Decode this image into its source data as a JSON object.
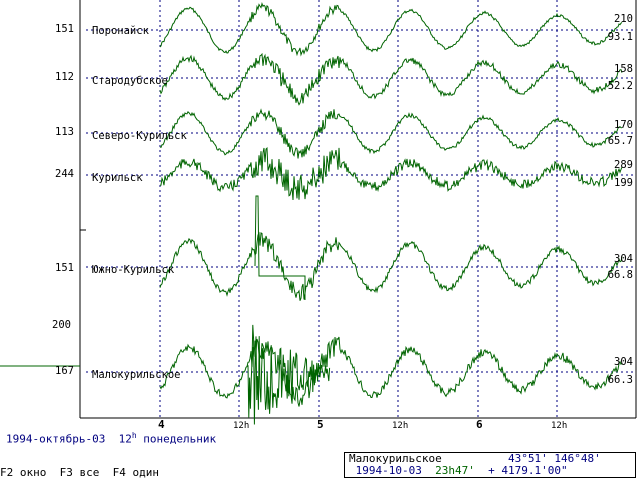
{
  "footer": {
    "date_text": "1994-октябрь-03",
    "hour_text": "12",
    "hour_sup": "h",
    "weekday": "понедельник",
    "keys": [
      {
        "key": "F2",
        "label": "окно"
      },
      {
        "key": "F3",
        "label": "все"
      },
      {
        "key": "F4",
        "label": "один"
      }
    ]
  },
  "info_box": {
    "station": "Малокурильское",
    "lat": "43°51'",
    "lon": "146°48'",
    "date": "1994-10-03",
    "time": "23h47'",
    "value": "+ 4179.1'00\""
  },
  "x_axis": {
    "day_labels": [
      "4",
      "5",
      "6"
    ],
    "hour_label": "12h"
  },
  "stations": [
    {
      "name": "Поронайск",
      "left_value": "151",
      "right_top": "210",
      "right_bottom": "93.1"
    },
    {
      "name": "Стародубское",
      "left_value": "112",
      "right_top": "158",
      "right_bottom": "52.2"
    },
    {
      "name": "Северо-Курильск",
      "left_value": "113",
      "right_top": "170",
      "right_bottom": "65.7"
    },
    {
      "name": "Курильск",
      "left_value": "244",
      "right_top": "289",
      "right_bottom": "199"
    },
    {
      "name": "Южно-Курильск",
      "left_value": "151",
      "right_top": "304",
      "right_bottom": "66.8"
    },
    {
      "name": "Малокурильское",
      "left_value": "167",
      "right_top": "304",
      "right_bottom": "66.3"
    }
  ],
  "extra_axis_label": "200",
  "colors": {
    "trace": "#006400",
    "grid": "#000080",
    "text": "#000000",
    "info_text": "#000080"
  }
}
